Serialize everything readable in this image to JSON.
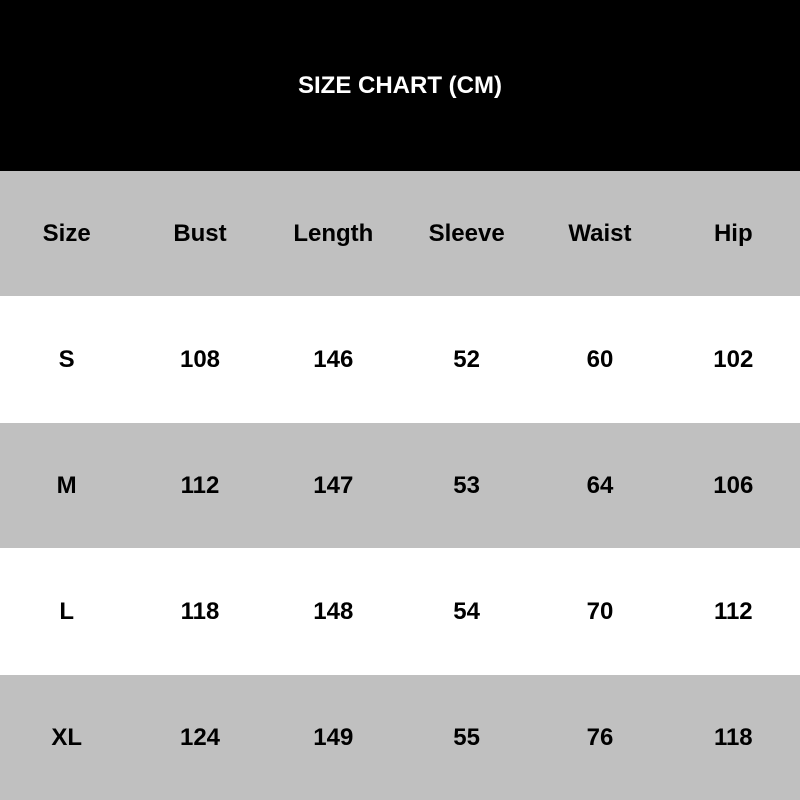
{
  "title": "SIZE CHART (CM)",
  "colors": {
    "header_bg": "#000000",
    "stripe": "#c0c0c0",
    "row_bg": "#ffffff"
  },
  "table": {
    "headers": [
      "Size",
      "Bust",
      "Length",
      "Sleeve",
      "Waist",
      "Hip"
    ],
    "rows": [
      [
        "S",
        "108",
        "146",
        "52",
        "60",
        "102"
      ],
      [
        "M",
        "112",
        "147",
        "53",
        "64",
        "106"
      ],
      [
        "L",
        "118",
        "148",
        "54",
        "70",
        "112"
      ],
      [
        "XL",
        "124",
        "149",
        "55",
        "76",
        "118"
      ]
    ]
  }
}
